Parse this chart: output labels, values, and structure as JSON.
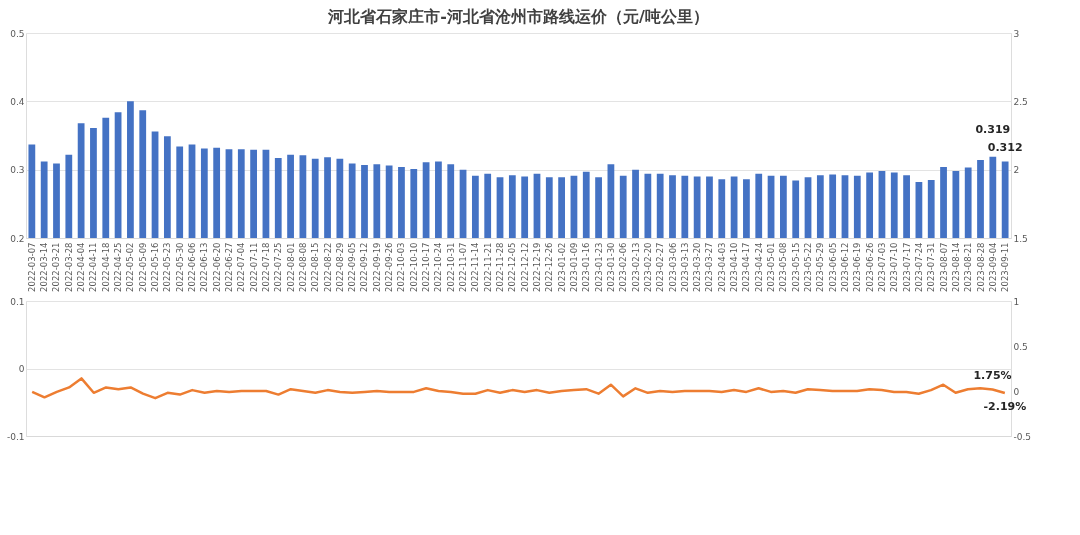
{
  "chart_data": [
    {
      "type": "bar",
      "title": "河北省石家庄市-河北省沧州市路线运价（元/吨公里）",
      "categories": [
        "2022-03-07",
        "2022-03-14",
        "2022-03-21",
        "2022-03-28",
        "2022-04-04",
        "2022-04-11",
        "2022-04-18",
        "2022-04-25",
        "2022-05-02",
        "2022-05-09",
        "2022-05-16",
        "2022-05-23",
        "2022-05-30",
        "2022-06-06",
        "2022-06-13",
        "2022-06-20",
        "2022-06-27",
        "2022-07-04",
        "2022-07-11",
        "2022-07-18",
        "2022-07-25",
        "2022-08-01",
        "2022-08-08",
        "2022-08-15",
        "2022-08-22",
        "2022-08-29",
        "2022-09-05",
        "2022-09-12",
        "2022-09-19",
        "2022-09-26",
        "2022-10-03",
        "2022-10-10",
        "2022-10-17",
        "2022-10-24",
        "2022-10-31",
        "2022-11-07",
        "2022-11-14",
        "2022-11-21",
        "2022-11-28",
        "2022-12-05",
        "2022-12-12",
        "2022-12-19",
        "2022-12-26",
        "2023-01-02",
        "2023-01-09",
        "2023-01-16",
        "2023-01-23",
        "2023-01-30",
        "2023-02-06",
        "2023-02-13",
        "2023-02-20",
        "2023-02-27",
        "2023-03-06",
        "2023-03-13",
        "2023-03-20",
        "2023-03-27",
        "2023-04-03",
        "2023-04-10",
        "2023-04-17",
        "2023-04-24",
        "2023-05-01",
        "2023-05-08",
        "2023-05-15",
        "2023-05-22",
        "2023-05-29",
        "2023-06-05",
        "2023-06-12",
        "2023-06-19",
        "2023-06-26",
        "2023-07-03",
        "2023-07-10",
        "2023-07-17",
        "2023-07-24",
        "2023-07-31",
        "2023-08-07",
        "2023-08-14",
        "2023-08-21",
        "2023-08-28",
        "2023-09-04",
        "2023-09-11"
      ],
      "series": [
        {
          "color": "#4472c4",
          "values": [
            0.337,
            0.312,
            0.309,
            0.322,
            0.368,
            0.361,
            0.376,
            0.384,
            0.4,
            0.387,
            0.356,
            0.349,
            0.334,
            0.337,
            0.331,
            0.332,
            0.33,
            0.33,
            0.329,
            0.329,
            0.317,
            0.322,
            0.321,
            0.316,
            0.318,
            0.316,
            0.309,
            0.307,
            0.308,
            0.306,
            0.304,
            0.301,
            0.311,
            0.312,
            0.308,
            0.3,
            0.291,
            0.294,
            0.289,
            0.292,
            0.29,
            0.294,
            0.289,
            0.289,
            0.291,
            0.297,
            0.289,
            0.308,
            0.291,
            0.3,
            0.294,
            0.294,
            0.292,
            0.291,
            0.29,
            0.29,
            0.286,
            0.29,
            0.286,
            0.294,
            0.291,
            0.291,
            0.284,
            0.289,
            0.292,
            0.293,
            0.292,
            0.291,
            0.296,
            0.298,
            0.296,
            0.292,
            0.282,
            0.285,
            0.304,
            0.298,
            0.303,
            0.314,
            0.319,
            0.312
          ],
          "value_labels": [
            null,
            null,
            null,
            null,
            null,
            null,
            null,
            null,
            null,
            null,
            null,
            null,
            null,
            null,
            null,
            null,
            null,
            null,
            null,
            null,
            null,
            null,
            null,
            null,
            null,
            null,
            null,
            null,
            null,
            null,
            null,
            null,
            null,
            null,
            null,
            null,
            null,
            null,
            null,
            null,
            null,
            null,
            null,
            null,
            null,
            null,
            null,
            null,
            null,
            null,
            null,
            null,
            null,
            null,
            null,
            null,
            null,
            null,
            null,
            null,
            null,
            null,
            null,
            null,
            null,
            null,
            null,
            null,
            null,
            null,
            null,
            null,
            null,
            null,
            null,
            null,
            null,
            null,
            "0.319",
            "0.312"
          ]
        }
      ],
      "ylim": [
        0.2,
        0.5
      ],
      "yticks": [
        0.2,
        0.3,
        0.4,
        0.5
      ],
      "y2lim": [
        1.5,
        3
      ],
      "y2ticks": [
        1.5,
        2,
        2.5,
        3
      ],
      "grid": "y"
    },
    {
      "type": "line",
      "categories": [
        null,
        null,
        null,
        null,
        null,
        null,
        null,
        null,
        null,
        null,
        null,
        null,
        null,
        null,
        null,
        null,
        null,
        null,
        null,
        null,
        null,
        null,
        null,
        null,
        null,
        null,
        null,
        null,
        null,
        null,
        null,
        null,
        null,
        null,
        null,
        null,
        null,
        null,
        null,
        null,
        null,
        null,
        null,
        null,
        null,
        null,
        null,
        null,
        null,
        null,
        null,
        null,
        null,
        null,
        null,
        null,
        null,
        null,
        null,
        null,
        null,
        null,
        null,
        null,
        null,
        null,
        null,
        null,
        null,
        null,
        null,
        null,
        null,
        null,
        null,
        null,
        null,
        null,
        null,
        null
      ],
      "series": [
        {
          "axis": "y2",
          "color": "#ed7d31",
          "values": [
            -0.01,
            -0.07,
            -0.01,
            0.04,
            0.14,
            -0.02,
            0.04,
            0.02,
            0.04,
            -0.03,
            -0.08,
            -0.02,
            -0.04,
            0.01,
            -0.02,
            0.0,
            -0.01,
            0.0,
            0.0,
            0.0,
            -0.04,
            0.02,
            0.0,
            -0.02,
            0.01,
            -0.01,
            -0.02,
            -0.01,
            0.0,
            -0.01,
            -0.01,
            -0.01,
            0.03,
            0.0,
            -0.01,
            -0.03,
            -0.03,
            0.01,
            -0.02,
            0.01,
            -0.01,
            0.01,
            -0.02,
            0.0,
            0.01,
            0.02,
            -0.03,
            0.07,
            -0.06,
            0.03,
            -0.02,
            0.0,
            -0.01,
            0.0,
            0.0,
            0.0,
            -0.01,
            0.01,
            -0.01,
            0.03,
            -0.01,
            0.0,
            -0.02,
            0.02,
            0.01,
            0.0,
            0.0,
            0.0,
            0.02,
            0.01,
            -0.01,
            -0.01,
            -0.03,
            0.01,
            0.07,
            -0.02,
            0.02,
            0.03,
            0.0175,
            -0.0219
          ],
          "value_labels": [
            null,
            null,
            null,
            null,
            null,
            null,
            null,
            null,
            null,
            null,
            null,
            null,
            null,
            null,
            null,
            null,
            null,
            null,
            null,
            null,
            null,
            null,
            null,
            null,
            null,
            null,
            null,
            null,
            null,
            null,
            null,
            null,
            null,
            null,
            null,
            null,
            null,
            null,
            null,
            null,
            null,
            null,
            null,
            null,
            null,
            null,
            null,
            null,
            null,
            null,
            null,
            null,
            null,
            null,
            null,
            null,
            null,
            null,
            null,
            null,
            null,
            null,
            null,
            null,
            null,
            null,
            null,
            null,
            null,
            null,
            null,
            null,
            null,
            null,
            null,
            null,
            null,
            null,
            "1.75%",
            "-2.19%"
          ]
        }
      ],
      "ylim": [
        -0.1,
        0.1
      ],
      "yticks": [
        -0.1,
        0,
        0.1
      ],
      "y2lim": [
        -0.5,
        1
      ],
      "y2ticks": [
        -0.5,
        0,
        0.5,
        1
      ],
      "grid": "y",
      "tick_labels": "y",
      "marker": "none",
      "line_style": "solid"
    }
  ]
}
